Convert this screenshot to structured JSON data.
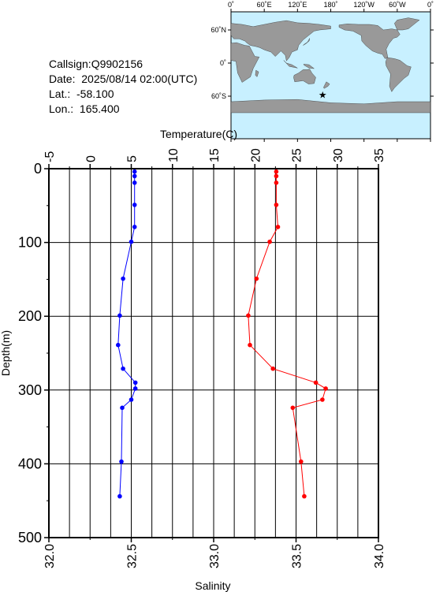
{
  "info": {
    "callsign": "Callsign:Q9902156",
    "date": "Date:  2025/08/14 02:00(UTC)",
    "lat": "Lat.:  -58.100",
    "lon": "Lon.:  165.400"
  },
  "map": {
    "top_labels": [
      "0˚",
      "60˚E",
      "120˚E",
      "180˚",
      "120˚W",
      "60˚W",
      "0˚"
    ],
    "lat_labels": [
      "60˚N",
      "0˚",
      "60˚S"
    ],
    "marker": {
      "lat": -58.1,
      "lon": 165.4,
      "symbol": "★"
    },
    "colors": {
      "ocean": "#c8f0ff",
      "land": "#999999",
      "marker": "#ff0000"
    }
  },
  "chart_data": {
    "type": "line",
    "temperature_axis": {
      "label": "Temperature(C)",
      "range": [
        -5,
        35
      ],
      "ticks": [
        "-5",
        "0",
        "5",
        "10",
        "15",
        "20",
        "25",
        "30",
        "35"
      ]
    },
    "salinity_axis": {
      "label": "Salinity",
      "range": [
        32.0,
        34.0
      ],
      "ticks": [
        "32.0",
        "32.5",
        "33.0",
        "33.5",
        "34.0"
      ]
    },
    "depth_axis": {
      "label": "Depth(m)",
      "range": [
        0,
        500
      ],
      "ticks": [
        "0",
        "100",
        "200",
        "300",
        "400",
        "500"
      ]
    },
    "grid": true,
    "series": [
      {
        "color": "#0000ff",
        "axis": "temperature",
        "points": [
          {
            "v": 5.4,
            "depth": 4
          },
          {
            "v": 5.4,
            "depth": 10
          },
          {
            "v": 5.4,
            "depth": 19
          },
          {
            "v": 5.4,
            "depth": 49
          },
          {
            "v": 5.4,
            "depth": 79
          },
          {
            "v": 5.0,
            "depth": 99
          },
          {
            "v": 4.0,
            "depth": 149
          },
          {
            "v": 3.6,
            "depth": 199
          },
          {
            "v": 3.4,
            "depth": 239
          },
          {
            "v": 4.0,
            "depth": 271
          },
          {
            "v": 5.5,
            "depth": 290
          },
          {
            "v": 5.5,
            "depth": 298
          },
          {
            "v": 5.0,
            "depth": 313
          },
          {
            "v": 3.9,
            "depth": 324
          },
          {
            "v": 3.8,
            "depth": 397
          },
          {
            "v": 3.6,
            "depth": 444
          }
        ]
      },
      {
        "color": "#ff0000",
        "axis": "salinity",
        "points": [
          {
            "v": 33.38,
            "depth": 4
          },
          {
            "v": 33.38,
            "depth": 10
          },
          {
            "v": 33.38,
            "depth": 19
          },
          {
            "v": 33.38,
            "depth": 49
          },
          {
            "v": 33.39,
            "depth": 79
          },
          {
            "v": 33.34,
            "depth": 99
          },
          {
            "v": 33.26,
            "depth": 149
          },
          {
            "v": 33.21,
            "depth": 199
          },
          {
            "v": 33.22,
            "depth": 239
          },
          {
            "v": 33.36,
            "depth": 271
          },
          {
            "v": 33.62,
            "depth": 290
          },
          {
            "v": 33.68,
            "depth": 298
          },
          {
            "v": 33.66,
            "depth": 313
          },
          {
            "v": 33.48,
            "depth": 324
          },
          {
            "v": 33.53,
            "depth": 397
          },
          {
            "v": 33.55,
            "depth": 444
          }
        ]
      }
    ]
  }
}
